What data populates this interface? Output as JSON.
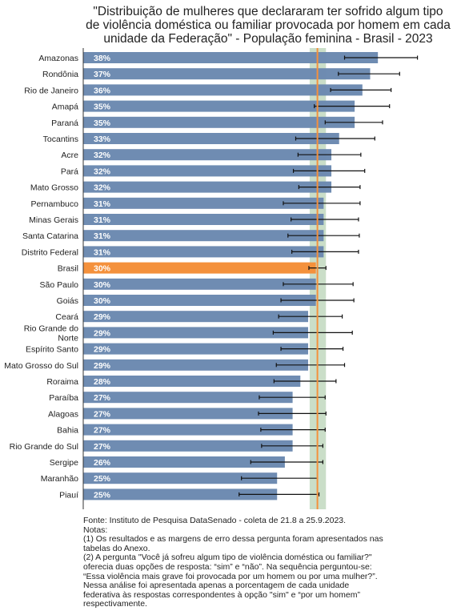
{
  "chart_data": {
    "type": "bar",
    "orientation": "horizontal",
    "title_lines": [
      "\"Distribuição de mulheres que declararam ter sofrido algum tipo",
      "de violência doméstica ou familiar provocada por homem em cada",
      "unidade da Federação\" - População feminina - Brasil - 2023"
    ],
    "categories": [
      "Amazonas",
      "Rondônia",
      "Rio de Janeiro",
      "Amapá",
      "Paraná",
      "Tocantins",
      "Acre",
      "Pará",
      "Mato Grosso",
      "Pernambuco",
      "Minas Gerais",
      "Santa Catarina",
      "Distrito Federal",
      "Brasil",
      "São Paulo",
      "Goiás",
      "Ceará",
      "Rio Grande do Norte",
      "Espírito Santo",
      "Mato Grosso do Sul",
      "Roraima",
      "Paraíba",
      "Alagoas",
      "Bahia",
      "Rio Grande do Sul",
      "Sergipe",
      "Maranhão",
      "Piauí"
    ],
    "category_lines": [
      [
        "Amazonas"
      ],
      [
        "Rondônia"
      ],
      [
        "Rio de Janeiro"
      ],
      [
        "Amapá"
      ],
      [
        "Paraná"
      ],
      [
        "Tocantins"
      ],
      [
        "Acre"
      ],
      [
        "Pará"
      ],
      [
        "Mato Grosso"
      ],
      [
        "Pernambuco"
      ],
      [
        "Minas Gerais"
      ],
      [
        "Santa Catarina"
      ],
      [
        "Distrito Federal"
      ],
      [
        "Brasil"
      ],
      [
        "São Paulo"
      ],
      [
        "Goiás"
      ],
      [
        "Ceará"
      ],
      [
        "Rio Grande do",
        "Norte"
      ],
      [
        "Espírito Santo"
      ],
      [
        "Mato Grosso do Sul"
      ],
      [
        "Roraima"
      ],
      [
        "Paraíba"
      ],
      [
        "Alagoas"
      ],
      [
        "Bahia"
      ],
      [
        "Rio Grande do Sul"
      ],
      [
        "Sergipe"
      ],
      [
        "Maranhão"
      ],
      [
        "Piauí"
      ]
    ],
    "values": [
      38,
      37,
      36,
      35,
      35,
      33,
      32,
      32,
      32,
      31,
      31,
      31,
      31,
      30,
      30,
      30,
      29,
      29,
      29,
      29,
      28,
      27,
      27,
      27,
      27,
      26,
      25,
      25
    ],
    "value_labels": [
      "38%",
      "37%",
      "36%",
      "35%",
      "35%",
      "33%",
      "32%",
      "32%",
      "32%",
      "31%",
      "31%",
      "31%",
      "31%",
      "30%",
      "30%",
      "30%",
      "29%",
      "29%",
      "29%",
      "29%",
      "28%",
      "27%",
      "27%",
      "27%",
      "27%",
      "26%",
      "25%",
      "25%"
    ],
    "error_low": [
      33.7,
      32.9,
      31.9,
      29.8,
      31.2,
      27.4,
      27.7,
      27.1,
      27.8,
      25.8,
      26.8,
      26.4,
      26.9,
      29.1,
      25.8,
      25.5,
      25.2,
      24.5,
      25.5,
      24.9,
      24.6,
      22.7,
      22.6,
      22.9,
      23.0,
      21.6,
      20.4,
      20.1
    ],
    "error_high": [
      43.1,
      40.8,
      39.7,
      39.5,
      38.6,
      37.6,
      35.8,
      36.3,
      35.7,
      35.7,
      35.5,
      35.6,
      35.5,
      31.3,
      34.8,
      34.9,
      33.4,
      34.7,
      33.5,
      33.7,
      32.6,
      31.2,
      31.3,
      31.2,
      30.9,
      30.9,
      30.2,
      30.4
    ],
    "highlight_category": "Brasil",
    "reference_value": 30.2,
    "reference_band": [
      29.2,
      31.3
    ],
    "xlim": [
      0,
      45
    ],
    "colors": {
      "bar": "#6a88b0",
      "highlight_bar": "#f4913c",
      "reference_line": "#f4913c",
      "reference_band": "#9fc39a",
      "error_bar": "#111111",
      "label": "#ffffff"
    }
  },
  "footnote_lines": [
    "Fonte: Instituto de Pesquisa DataSenado - coleta de 21.8 a 25.9.2023.",
    "Notas:",
    "(1) Os resultados e as margens de erro dessa pergunta foram apresentados nas",
    "tabelas do Anexo.",
    "(2) A pergunta \"Você já sofreu algum tipo de violência doméstica ou familiar?\"",
    "oferecia duas opções de resposta: “sim” e “não”. Na sequência perguntou-se:",
    "“Essa violência mais grave foi provocada por um homem ou por uma mulher?”.",
    "Nessa análise foi apresentada apenas a porcentagem de cada unidade",
    "federativa às respostas correspondentes à opção \"sim\" e “por um homem”",
    "respectivamente."
  ]
}
